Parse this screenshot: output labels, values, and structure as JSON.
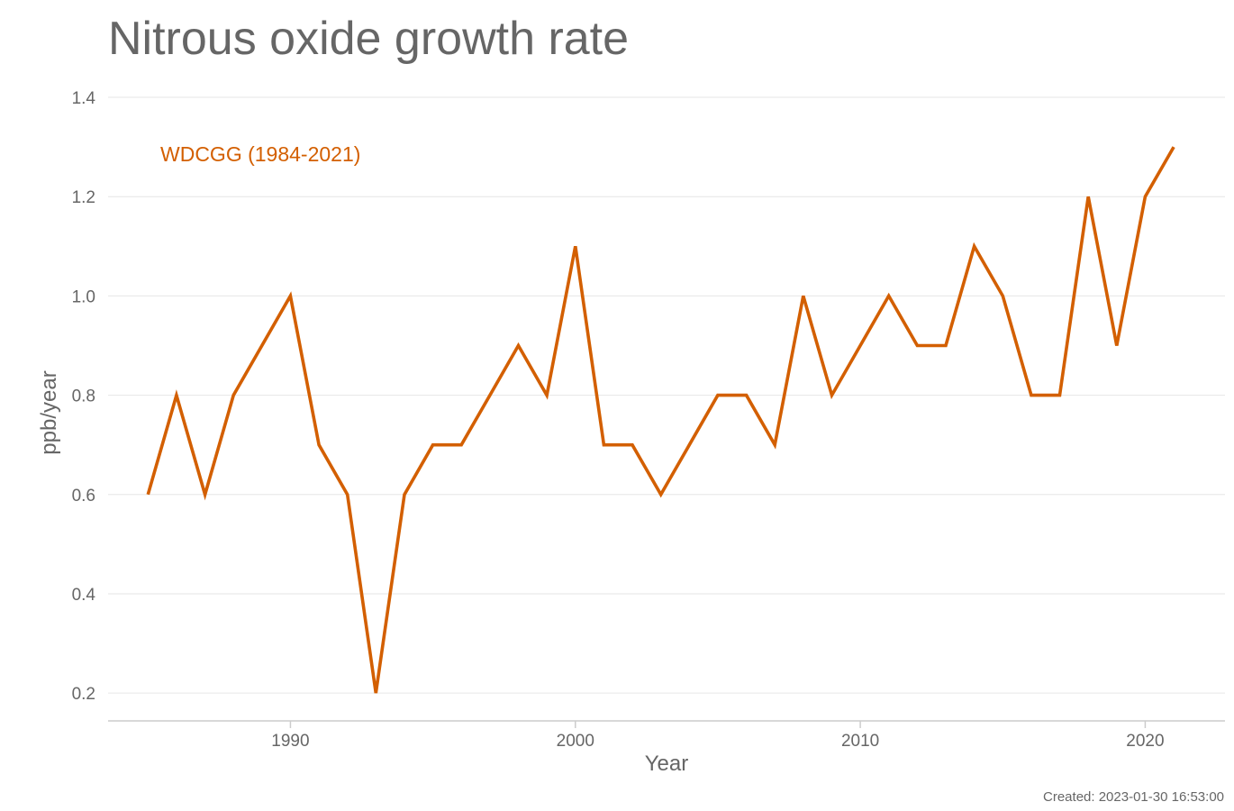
{
  "chart_data": {
    "type": "line",
    "title": "Nitrous oxide growth rate",
    "xlabel": "Year",
    "ylabel": "ppb/year",
    "xlim": [
      1983.6,
      2022.8
    ],
    "ylim": [
      0.144,
      1.4
    ],
    "x_ticks": [
      1990,
      2000,
      2010,
      2020
    ],
    "y_ticks": [
      0.2,
      0.4,
      0.6,
      0.8,
      1.0,
      1.2,
      1.4
    ],
    "y_tick_labels": [
      "0.2",
      "0.4",
      "0.6",
      "0.8",
      "1.0",
      "1.2",
      "1.4"
    ],
    "grid": true,
    "legend_placement": "top-left",
    "series": [
      {
        "name": "WDCGG (1984-2021)",
        "color": "#d35f00",
        "x": [
          1985,
          1986,
          1987,
          1988,
          1989,
          1990,
          1991,
          1992,
          1993,
          1994,
          1995,
          1996,
          1997,
          1998,
          1999,
          2000,
          2001,
          2002,
          2003,
          2004,
          2005,
          2006,
          2007,
          2008,
          2009,
          2010,
          2011,
          2012,
          2013,
          2014,
          2015,
          2016,
          2017,
          2018,
          2019,
          2020,
          2021
        ],
        "values": [
          0.6,
          0.8,
          0.6,
          0.8,
          0.9,
          1.0,
          0.7,
          0.6,
          0.2,
          0.6,
          0.7,
          0.7,
          0.8,
          0.9,
          0.8,
          1.1,
          0.7,
          0.7,
          0.6,
          0.7,
          0.8,
          0.8,
          0.7,
          1.0,
          0.8,
          0.9,
          1.0,
          0.9,
          0.9,
          1.1,
          1.0,
          0.8,
          0.8,
          1.2,
          0.9,
          1.2,
          1.3
        ]
      }
    ]
  },
  "footer": {
    "created": "Created: 2023-01-30 16:53:00"
  },
  "colors": {
    "text": "#666666",
    "grid": "#e6e6e6",
    "axis": "#cccccc",
    "series": "#d35f00"
  }
}
